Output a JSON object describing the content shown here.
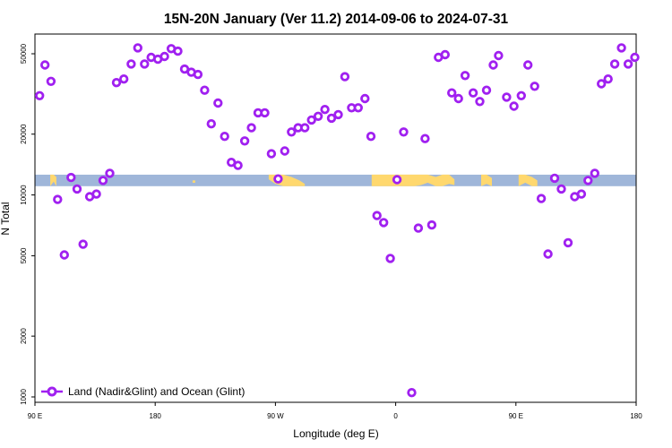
{
  "chart_data": {
    "type": "scatter",
    "title": "15N-20N January (Ver 11.2)   2014-09-06 to 2024-07-31",
    "xlabel": "Longitude (deg E)",
    "ylabel": "N Total",
    "yscale": "log",
    "xlim": [
      90,
      540
    ],
    "ylim": [
      950,
      62000
    ],
    "x_ticks": [
      {
        "value": 90,
        "label": "90 E"
      },
      {
        "value": 180,
        "label": "180"
      },
      {
        "value": 270,
        "label": "90 W"
      },
      {
        "value": 360,
        "label": "0"
      },
      {
        "value": 450,
        "label": "90 E"
      },
      {
        "value": 540,
        "label": "180"
      }
    ],
    "y_ticks": [
      {
        "value": 1000,
        "label": "1000"
      },
      {
        "value": 2000,
        "label": "2000"
      },
      {
        "value": 5000,
        "label": "5000"
      },
      {
        "value": 10000,
        "label": "10000"
      },
      {
        "value": 20000,
        "label": "20000"
      },
      {
        "value": 50000,
        "label": "50000"
      }
    ],
    "land_band_note": "map strip of 15N-20N latitude band between about 11000 and 12500",
    "colors": {
      "marker": "#a020f0",
      "ocean": "#9fb6d9",
      "land": "#ffd86e"
    },
    "series": [
      {
        "name": "Land (Nadir&Glint) and Ocean (Glint)",
        "points": [
          [
            93.5,
            31000
          ],
          [
            97.5,
            44000
          ],
          [
            102,
            36500
          ],
          [
            107,
            9500
          ],
          [
            112,
            5050
          ],
          [
            117,
            12200
          ],
          [
            121.5,
            10700
          ],
          [
            126,
            5700
          ],
          [
            131,
            9800
          ],
          [
            136,
            10100
          ],
          [
            141,
            11800
          ],
          [
            146,
            12800
          ],
          [
            151,
            36000
          ],
          [
            156.5,
            37500
          ],
          [
            162,
            44500
          ],
          [
            167,
            53500
          ],
          [
            172,
            44500
          ],
          [
            177,
            48000
          ],
          [
            182,
            47000
          ],
          [
            187,
            48500
          ],
          [
            192,
            53000
          ],
          [
            197,
            51500
          ],
          [
            202,
            42000
          ],
          [
            207,
            40500
          ],
          [
            212,
            39500
          ],
          [
            217,
            33000
          ],
          [
            222,
            22500
          ],
          [
            227,
            28500
          ],
          [
            232,
            19500
          ],
          [
            237,
            14500
          ],
          [
            242,
            14000
          ],
          [
            247,
            18500
          ],
          [
            252,
            21500
          ],
          [
            257,
            25500
          ],
          [
            262,
            25500
          ],
          [
            267,
            16000
          ],
          [
            272,
            12000
          ],
          [
            277,
            16500
          ],
          [
            282,
            20500
          ],
          [
            287,
            21500
          ],
          [
            292,
            21500
          ],
          [
            297,
            23500
          ],
          [
            302,
            24500
          ],
          [
            307,
            26500
          ],
          [
            312,
            24000
          ],
          [
            317,
            25000
          ],
          [
            322,
            38500
          ],
          [
            327,
            27000
          ],
          [
            332,
            27000
          ],
          [
            337,
            30000
          ],
          [
            341.5,
            19500
          ],
          [
            346,
            7900
          ],
          [
            351,
            7300
          ],
          [
            356,
            4850
          ],
          [
            361,
            11900
          ],
          [
            366,
            20500
          ],
          [
            372,
            1050
          ],
          [
            377,
            6850
          ],
          [
            382,
            19000
          ],
          [
            387,
            7100
          ],
          [
            392,
            48000
          ],
          [
            397,
            49500
          ],
          [
            402,
            32000
          ],
          [
            407,
            30000
          ],
          [
            412,
            39000
          ],
          [
            418,
            32000
          ],
          [
            423,
            29000
          ],
          [
            428,
            33000
          ],
          [
            433,
            44000
          ],
          [
            437,
            49000
          ],
          [
            443,
            30500
          ],
          [
            448.5,
            27500
          ],
          [
            454,
            31000
          ],
          [
            459,
            44000
          ],
          [
            464,
            34500
          ],
          [
            469,
            9600
          ],
          [
            474,
            5100
          ],
          [
            479,
            12100
          ],
          [
            484,
            10700
          ],
          [
            489,
            5800
          ],
          [
            494,
            9800
          ],
          [
            499,
            10100
          ],
          [
            504,
            11800
          ],
          [
            509,
            12800
          ],
          [
            514,
            35500
          ],
          [
            519,
            37500
          ],
          [
            524,
            44500
          ],
          [
            529,
            53500
          ],
          [
            534,
            44500
          ],
          [
            539,
            48000
          ]
        ]
      }
    ],
    "legend": {
      "position": "bottom-left",
      "label": "Land (Nadir&Glint) and Ocean (Glint)"
    }
  }
}
